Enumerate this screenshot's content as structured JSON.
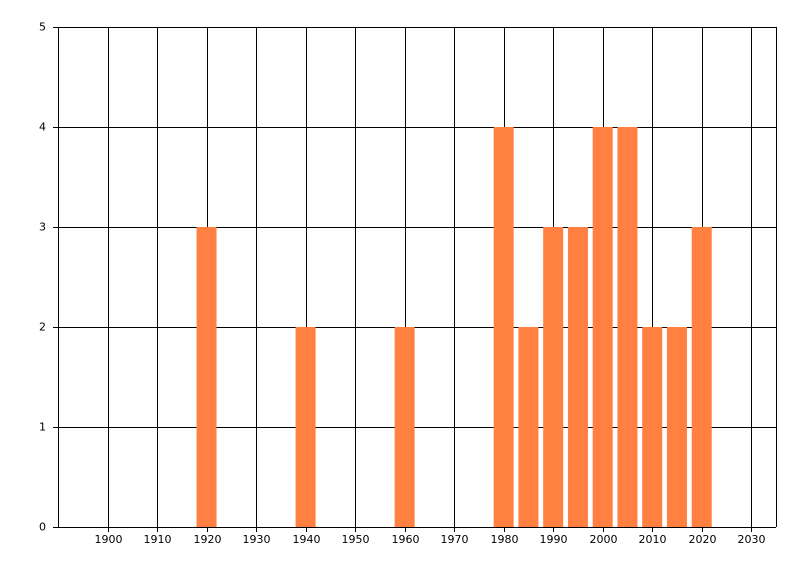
{
  "chart_data": {
    "type": "bar",
    "x": [
      1920,
      1940,
      1960,
      1980,
      1985,
      1990,
      1995,
      2000,
      2005,
      2010,
      2015,
      2020
    ],
    "values": [
      3,
      2,
      2,
      4,
      2,
      3,
      3,
      4,
      4,
      2,
      2,
      3
    ],
    "color": "#ff8040",
    "xlim": [
      1890,
      2035
    ],
    "xticks": [
      1900,
      1910,
      1920,
      1930,
      1940,
      1950,
      1960,
      1970,
      1980,
      1990,
      2000,
      2010,
      2020,
      2030
    ],
    "ylim": [
      0,
      5
    ],
    "yticks": [
      0,
      1,
      2,
      3,
      4,
      5
    ],
    "grid": true
  }
}
